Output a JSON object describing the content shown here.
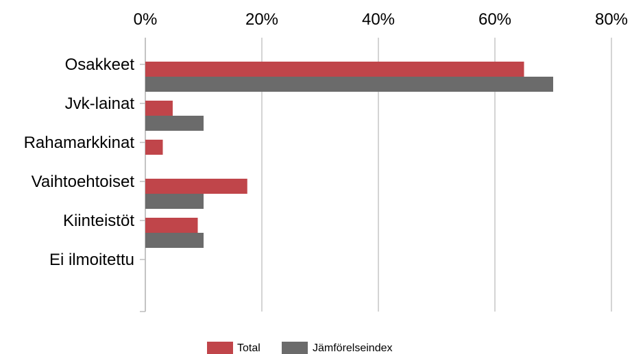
{
  "chart_data": {
    "type": "bar",
    "orientation": "horizontal",
    "categories": [
      "Osakkeet",
      "Jvk-lainat",
      "Rahamarkkinat",
      "Vaihtoehtoiset",
      "Kiinteistöt",
      "Ei ilmoitettu"
    ],
    "series": [
      {
        "name": "Total",
        "color": "#c0454a",
        "values": [
          65,
          4.7,
          3.0,
          17.5,
          9.0,
          0
        ]
      },
      {
        "name": "Jämförelseindex",
        "color": "#6b6b6b",
        "values": [
          70,
          10,
          0,
          10,
          10,
          0
        ]
      }
    ],
    "x_ticks": [
      "0%",
      "20%",
      "40%",
      "60%",
      "80%"
    ],
    "xlim": [
      0,
      80
    ],
    "xaxis_position": "top",
    "grid": true,
    "legend_position": "bottom-center"
  }
}
